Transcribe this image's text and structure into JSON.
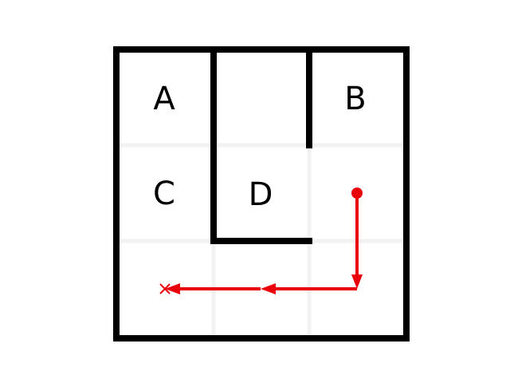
{
  "maze": {
    "rows": 3,
    "cols": 3,
    "labels": [
      {
        "id": "A",
        "text": "A",
        "row": 0,
        "col": 0
      },
      {
        "id": "B",
        "text": "B",
        "row": 0,
        "col": 2
      },
      {
        "id": "C",
        "text": "C",
        "row": 1,
        "col": 0
      },
      {
        "id": "D",
        "text": "D",
        "row": 1,
        "col": 1
      }
    ],
    "path": {
      "start_cell": {
        "row": 1,
        "col": 2
      },
      "moves": [
        "down",
        "left",
        "left"
      ],
      "end_cell": {
        "row": 2,
        "col": 0
      }
    }
  },
  "colors": {
    "wall": "#000000",
    "grid": "#f2f2f2",
    "path": "#e8000b",
    "background": "#ffffff"
  }
}
